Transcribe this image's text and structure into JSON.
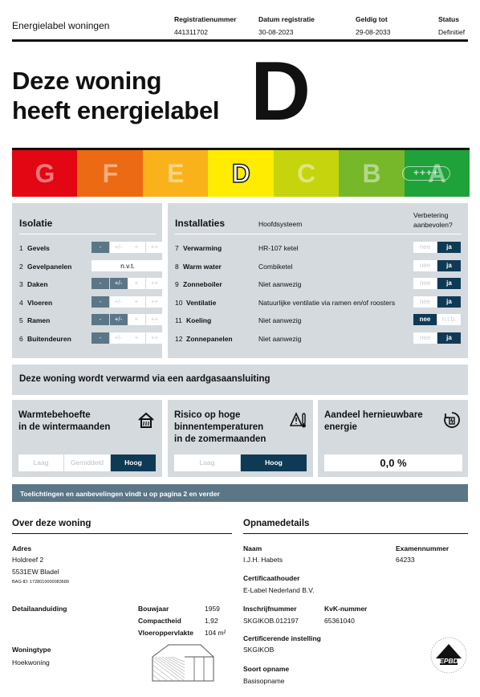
{
  "header": {
    "title": "Energielabel woningen",
    "reg_label": "Registratienummer",
    "reg_value": "441311702",
    "date_label": "Datum registratie",
    "date_value": "30-08-2023",
    "valid_label": "Geldig tot",
    "valid_value": "29-08-2033",
    "status_label": "Status",
    "status_value": "Definitief"
  },
  "hero": {
    "line1": "Deze woning",
    "line2": "heeft energielabel",
    "label": "D"
  },
  "energy_bar": {
    "classes": [
      "G",
      "F",
      "E",
      "D",
      "C",
      "B",
      "A"
    ],
    "colors": [
      "#e30613",
      "#ec6a13",
      "#f9b21a",
      "#ffec00",
      "#c5d40c",
      "#77b82a",
      "#20a23a"
    ],
    "active": "D",
    "plus_badge": "++++"
  },
  "isolatie": {
    "title": "Isolatie",
    "scale": [
      "-",
      "+/-",
      "+",
      "++"
    ],
    "rows": [
      {
        "num": "1",
        "label": "Gevels",
        "active": "-"
      },
      {
        "num": "2",
        "label": "Gevelpanelen",
        "text": "n.v.t."
      },
      {
        "num": "3",
        "label": "Daken",
        "active": "+/-"
      },
      {
        "num": "4",
        "label": "Vloeren",
        "active": "-"
      },
      {
        "num": "5",
        "label": "Ramen",
        "active": "+/-"
      },
      {
        "num": "6",
        "label": "Buitendeuren",
        "active": "-"
      }
    ]
  },
  "installaties": {
    "title": "Installaties",
    "col_label": "Hoofdsysteem",
    "improve_label_1": "Verbetering",
    "improve_label_2": "aanbevolen?",
    "rows": [
      {
        "num": "7",
        "label": "Verwarming",
        "value": "HR-107 ketel",
        "left": "nee",
        "right": "ja",
        "on": "right"
      },
      {
        "num": "8",
        "label": "Warm water",
        "value": "Combiketel",
        "left": "nee",
        "right": "ja",
        "on": "right"
      },
      {
        "num": "9",
        "label": "Zonneboiler",
        "value": "Niet aanwezig",
        "left": "nee",
        "right": "ja",
        "on": "right"
      },
      {
        "num": "10",
        "label": "Ventilatie",
        "value": "Natuurlijke ventilatie via ramen en/of roosters",
        "left": "nee",
        "right": "ja",
        "on": "right"
      },
      {
        "num": "11",
        "label": "Koeling",
        "value": "Niet aanwezig",
        "left": "nee",
        "right": "n.t.b.",
        "on": "left"
      },
      {
        "num": "12",
        "label": "Zonnepanelen",
        "value": "Niet aanwezig",
        "left": "nee",
        "right": "ja",
        "on": "right"
      }
    ]
  },
  "heating": "Deze woning wordt verwarmd via een aardgasaansluiting",
  "cards": {
    "warmte": {
      "title1": "Warmtebehoefte",
      "title2": "in de wintermaanden",
      "options": [
        "Laag",
        "Gemiddeld",
        "Hoog"
      ],
      "active": "Hoog"
    },
    "risico": {
      "title1": "Risico op hoge",
      "title2": "binnentemperaturen",
      "title3": "in de zomermaanden",
      "options": [
        "Laag",
        "Hoog"
      ],
      "active": "Hoog"
    },
    "hernieuwbaar": {
      "title1": "Aandeel hernieuwbare",
      "title2": "energie",
      "value": "0,0 %"
    }
  },
  "note": "Toelichtingen en aanbevelingen vindt u op pagina 2 en verder",
  "woning": {
    "heading": "Over deze woning",
    "adres_label": "Adres",
    "adres_line1": "Holdreef 2",
    "adres_line2": "5531EW Bladel",
    "bag_id": "BAG-ID: 1728010000083689",
    "detail_label": "Detailaanduiding",
    "bouwjaar_label": "Bouwjaar",
    "bouwjaar_value": "1959",
    "compact_label": "Compactheid",
    "compact_value": "1,92",
    "vloer_label": "Vloeroppervlakte",
    "vloer_value": "104 m²",
    "type_label": "Woningtype",
    "type_value": "Hoekwoning"
  },
  "opname": {
    "heading": "Opnamedetails",
    "naam_label": "Naam",
    "naam_value": "I.J.H. Habets",
    "exam_label": "Examennummer",
    "exam_value": "64233",
    "cert_label": "Certificaathouder",
    "cert_value": "E-Label Nederland B.V.",
    "inschrijf_label": "Inschrijfnummer",
    "inschrijf_value": "SKGIKOB.012197",
    "kvk_label": "KvK-nummer",
    "kvk_value": "65361040",
    "inst_label": "Certificerende instelling",
    "inst_value": "SKGIKOB",
    "soort_label": "Soort opname",
    "soort_value": "Basisopname",
    "logo_text": "EPBD"
  }
}
